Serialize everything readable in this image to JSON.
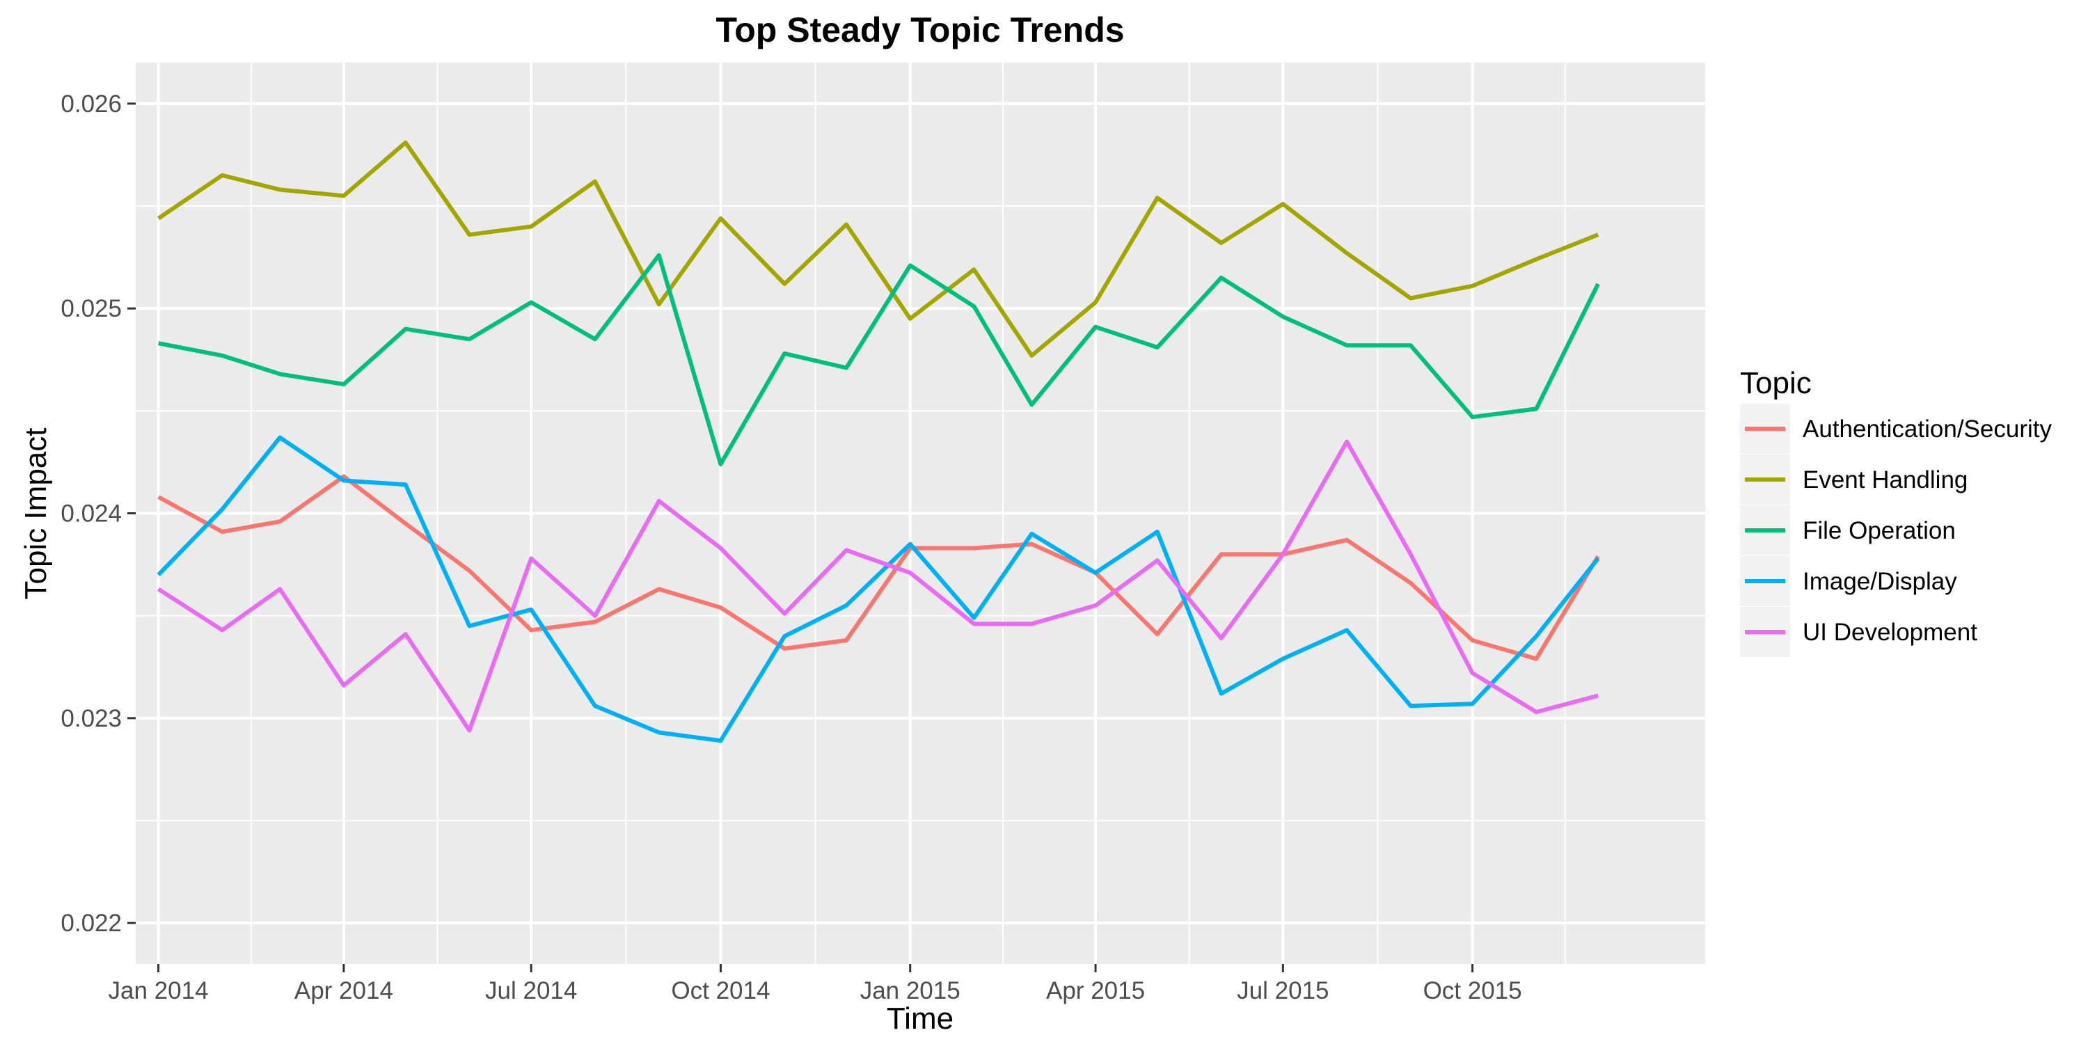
{
  "chart_data": {
    "type": "line",
    "title": "Top Steady Topic Trends",
    "xlabel": "Time",
    "ylabel": "Topic Impact",
    "ylim": [
      0.0218,
      0.0262
    ],
    "xlim": [
      "2013-12-21",
      "2016-01-22"
    ],
    "grid": true,
    "background": "#ebebeb",
    "legend_position": "right",
    "legend_title": "Topic",
    "x": [
      "2014-01-01",
      "2014-02-01",
      "2014-03-01",
      "2014-04-01",
      "2014-05-01",
      "2014-06-01",
      "2014-07-01",
      "2014-08-01",
      "2014-09-01",
      "2014-10-01",
      "2014-11-01",
      "2014-12-01",
      "2015-01-01",
      "2015-02-01",
      "2015-03-01",
      "2015-04-01",
      "2015-05-01",
      "2015-06-01",
      "2015-07-01",
      "2015-08-01",
      "2015-09-01",
      "2015-10-01",
      "2015-11-01",
      "2015-12-01"
    ],
    "x_ticks": [
      {
        "date": "2014-01-01",
        "label": "Jan 2014"
      },
      {
        "date": "2014-04-01",
        "label": "Apr 2014"
      },
      {
        "date": "2014-07-01",
        "label": "Jul 2014"
      },
      {
        "date": "2014-10-01",
        "label": "Oct 2014"
      },
      {
        "date": "2015-01-01",
        "label": "Jan 2015"
      },
      {
        "date": "2015-04-01",
        "label": "Apr 2015"
      },
      {
        "date": "2015-07-01",
        "label": "Jul 2015"
      },
      {
        "date": "2015-10-01",
        "label": "Oct 2015"
      }
    ],
    "y_ticks": [
      0.022,
      0.023,
      0.024,
      0.025,
      0.026
    ],
    "y_tick_labels": [
      "0.022",
      "0.023",
      "0.024",
      "0.025",
      "0.026"
    ],
    "series": [
      {
        "name": "Authentication/Security",
        "color": "#F8766D",
        "values": [
          0.02408,
          0.02391,
          0.02396,
          0.02418,
          0.02395,
          0.02372,
          0.02343,
          0.02347,
          0.02363,
          0.02354,
          0.02334,
          0.02338,
          0.02383,
          0.02383,
          0.02385,
          0.02371,
          0.02341,
          0.0238,
          0.0238,
          0.02387,
          0.02366,
          0.02338,
          0.02329,
          0.02379
        ]
      },
      {
        "name": "Event Handling",
        "color": "#A3A500",
        "values": [
          0.02544,
          0.02565,
          0.02558,
          0.02555,
          0.02581,
          0.02536,
          0.0254,
          0.02562,
          0.02502,
          0.02544,
          0.02512,
          0.02541,
          0.02495,
          0.02519,
          0.02477,
          0.02503,
          0.02554,
          0.02532,
          0.02551,
          0.02527,
          0.02505,
          0.02511,
          0.02524,
          0.02536
        ]
      },
      {
        "name": "File Operation",
        "color": "#00BF7D",
        "values": [
          0.02483,
          0.02477,
          0.02468,
          0.02463,
          0.0249,
          0.02485,
          0.02503,
          0.02485,
          0.02526,
          0.02424,
          0.02478,
          0.02471,
          0.02521,
          0.02501,
          0.02453,
          0.02491,
          0.02481,
          0.02515,
          0.02496,
          0.02482,
          0.02482,
          0.02447,
          0.02451,
          0.02512
        ]
      },
      {
        "name": "Image/Display",
        "color": "#00B0F6",
        "values": [
          0.0237,
          0.02402,
          0.02437,
          0.02416,
          0.02414,
          0.02345,
          0.02353,
          0.02306,
          0.02293,
          0.02289,
          0.0234,
          0.02355,
          0.02385,
          0.02349,
          0.0239,
          0.02371,
          0.02391,
          0.02312,
          0.02329,
          0.02343,
          0.02306,
          0.02307,
          0.0234,
          0.02378
        ]
      },
      {
        "name": "UI Development",
        "color": "#E76BF3",
        "values": [
          0.02363,
          0.02343,
          0.02363,
          0.02316,
          0.02341,
          0.02294,
          0.02378,
          0.0235,
          0.02406,
          0.02383,
          0.02351,
          0.02382,
          0.02371,
          0.02346,
          0.02346,
          0.02355,
          0.02377,
          0.02339,
          0.0238,
          0.02435,
          0.0238,
          0.02322,
          0.02303,
          0.02311
        ]
      }
    ]
  }
}
